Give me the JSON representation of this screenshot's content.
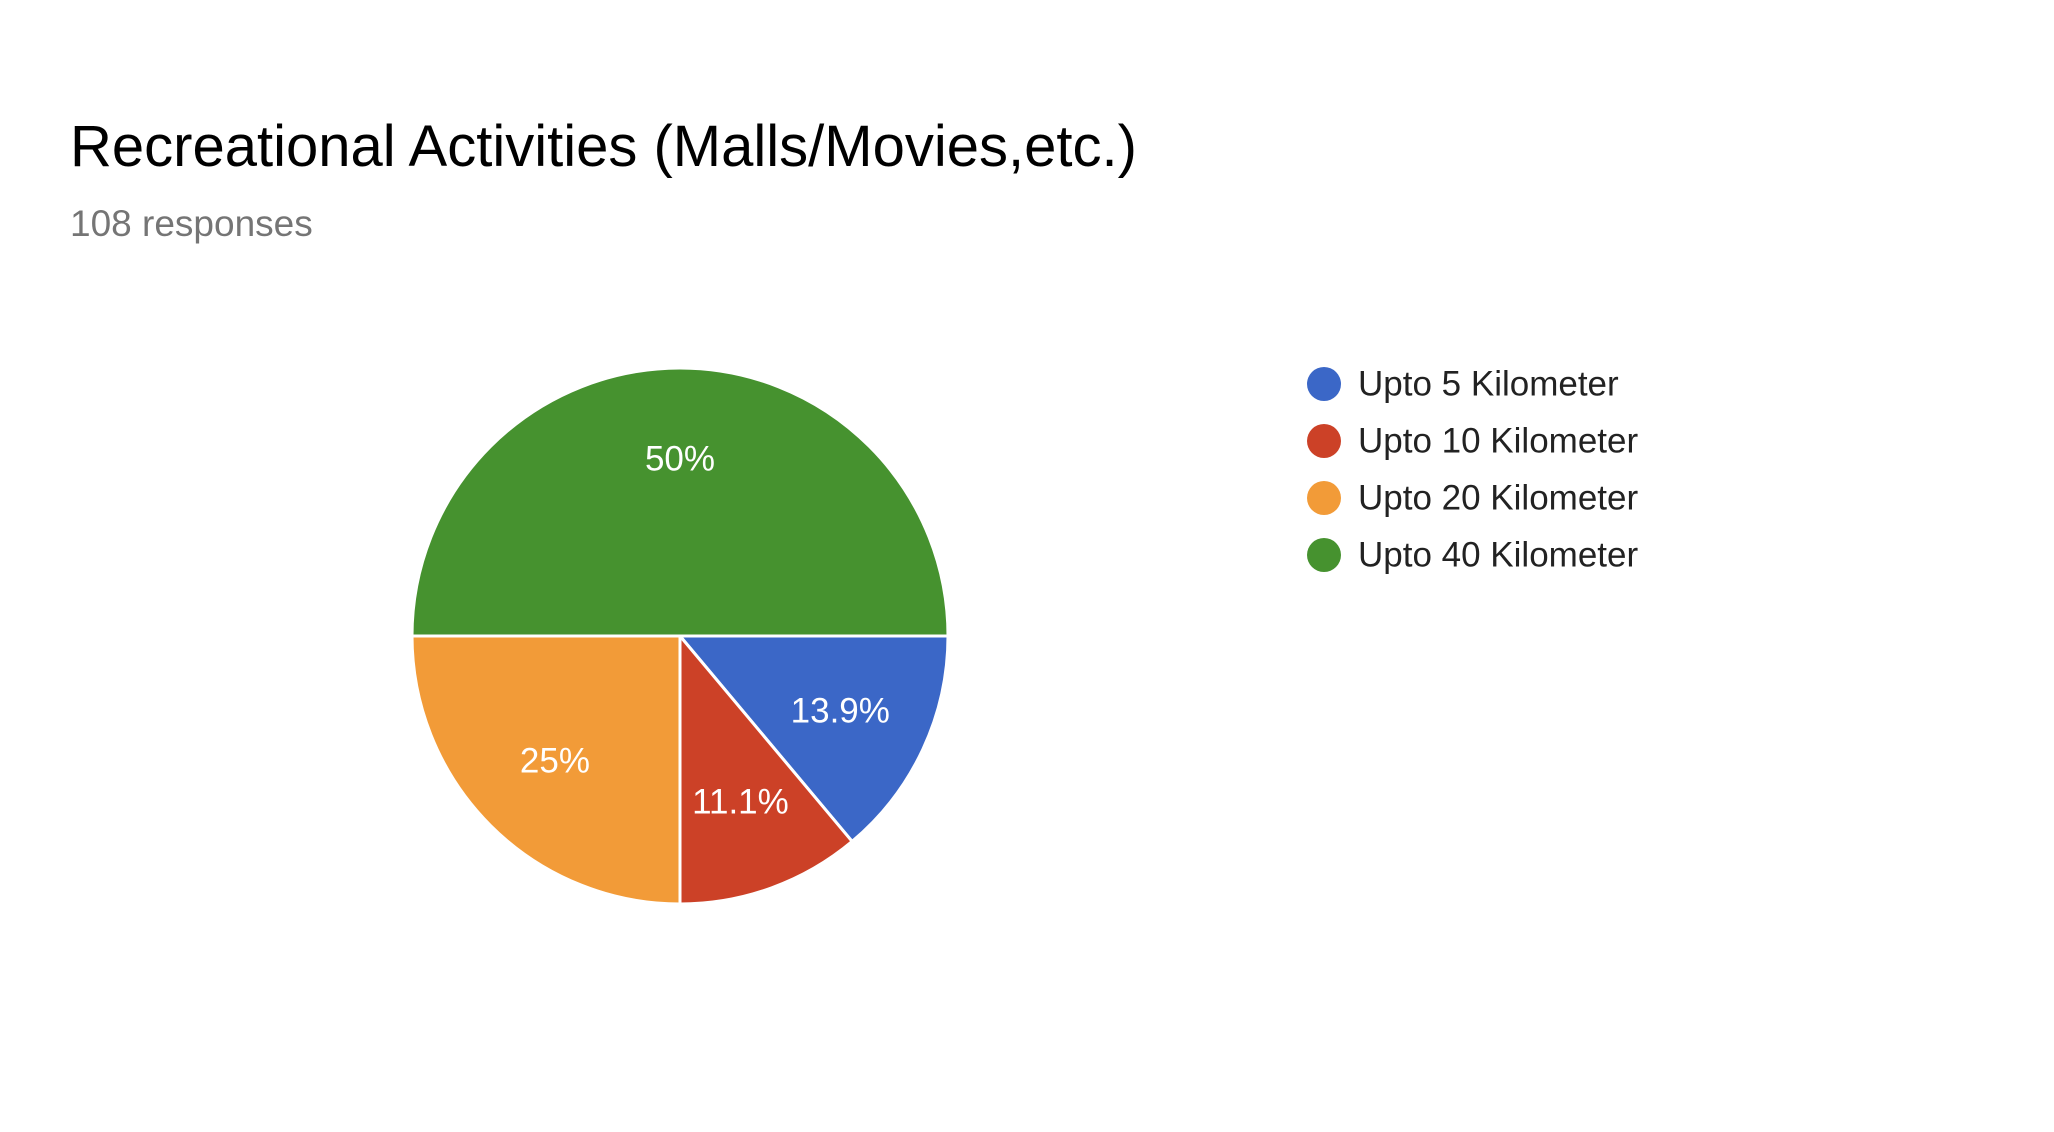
{
  "chart_data": {
    "type": "pie",
    "title": "Recreational Activities (Malls/Movies,etc.)",
    "subtitle": "108 responses",
    "categories": [
      "Upto 5 Kilometer",
      "Upto 10 Kilometer",
      "Upto 20 Kilometer",
      "Upto 40 Kilometer"
    ],
    "values": [
      13.9,
      11.1,
      25,
      50
    ],
    "value_labels": [
      "13.9%",
      "11.1%",
      "25%",
      "50%"
    ],
    "colors": [
      "#3b67c7",
      "#cc4127",
      "#f29b38",
      "#46922f"
    ],
    "legend_position": "right"
  }
}
